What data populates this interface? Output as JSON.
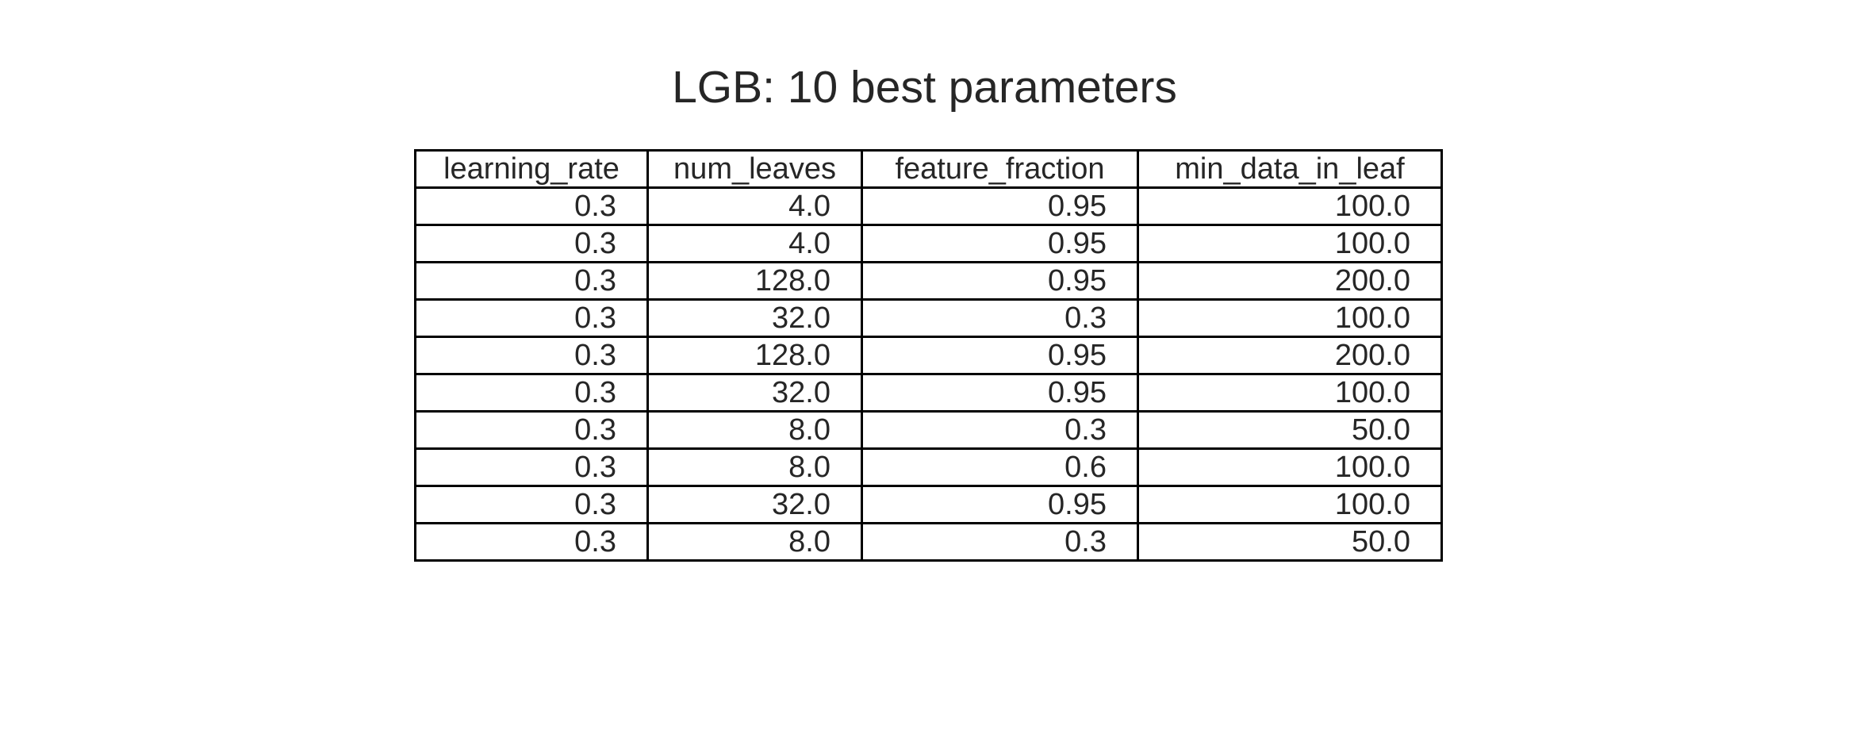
{
  "chart_data": {
    "type": "table",
    "title": "LGB: 10 best parameters",
    "columns": [
      "learning_rate",
      "num_leaves",
      "feature_fraction",
      "min_data_in_leaf"
    ],
    "rows": [
      [
        "0.3",
        "4.0",
        "0.95",
        "100.0"
      ],
      [
        "0.3",
        "4.0",
        "0.95",
        "100.0"
      ],
      [
        "0.3",
        "128.0",
        "0.95",
        "200.0"
      ],
      [
        "0.3",
        "32.0",
        "0.3",
        "100.0"
      ],
      [
        "0.3",
        "128.0",
        "0.95",
        "200.0"
      ],
      [
        "0.3",
        "32.0",
        "0.95",
        "100.0"
      ],
      [
        "0.3",
        "8.0",
        "0.3",
        "50.0"
      ],
      [
        "0.3",
        "8.0",
        "0.6",
        "100.0"
      ],
      [
        "0.3",
        "32.0",
        "0.95",
        "100.0"
      ],
      [
        "0.3",
        "8.0",
        "0.3",
        "50.0"
      ]
    ]
  }
}
